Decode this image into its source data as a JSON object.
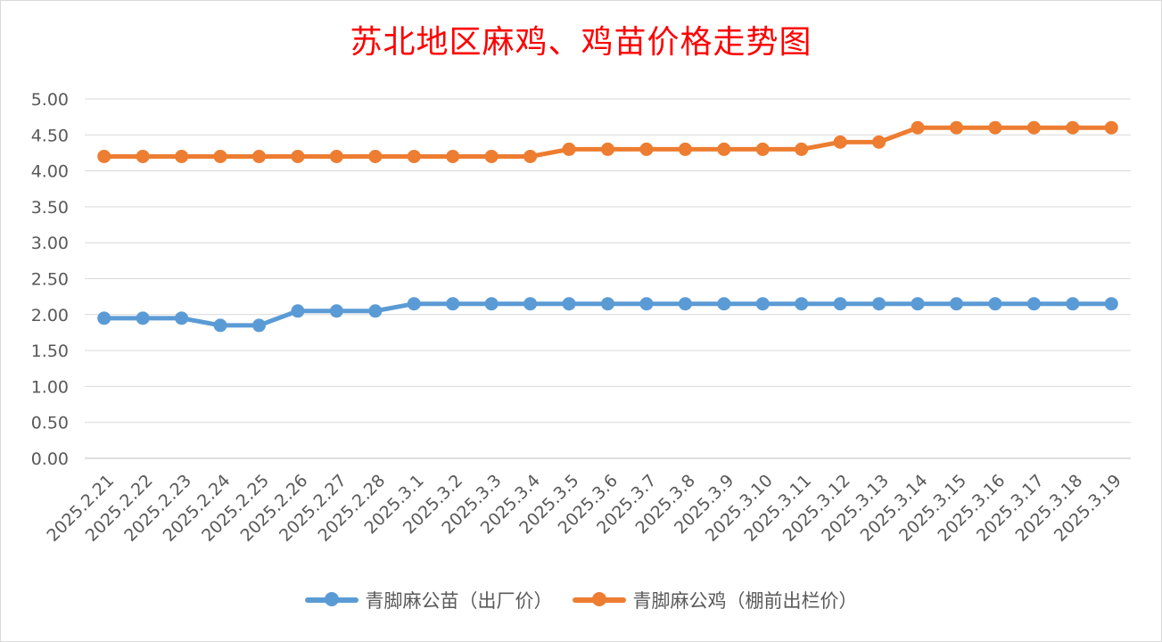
{
  "chart_data": {
    "type": "line",
    "title": "苏北地区麻鸡、鸡苗价格走势图",
    "xlabel": "",
    "ylabel": "",
    "ylim": [
      0,
      5
    ],
    "yticks": [
      "0.00",
      "0.50",
      "1.00",
      "1.50",
      "2.00",
      "2.50",
      "3.00",
      "3.50",
      "4.00",
      "4.50",
      "5.00"
    ],
    "grid": true,
    "legend_position": "bottom",
    "categories": [
      "2025.2.21",
      "2025.2.22",
      "2025.2.23",
      "2025.2.24",
      "2025.2.25",
      "2025.2.26",
      "2025.2.27",
      "2025.2.28",
      "2025.3.1",
      "2025.3.2",
      "2025.3.3",
      "2025.3.4",
      "2025.3.5",
      "2025.3.6",
      "2025.3.7",
      "2025.3.8",
      "2025.3.9",
      "2025.3.10",
      "2025.3.11",
      "2025.3.12",
      "2025.3.13",
      "2025.3.14",
      "2025.3.15",
      "2025.3.16",
      "2025.3.17",
      "2025.3.18",
      "2025.3.19"
    ],
    "series": [
      {
        "name": "青脚麻公苗（出厂价）",
        "color": "#5b9bd5",
        "values": [
          1.95,
          1.95,
          1.95,
          1.85,
          1.85,
          2.05,
          2.05,
          2.05,
          2.15,
          2.15,
          2.15,
          2.15,
          2.15,
          2.15,
          2.15,
          2.15,
          2.15,
          2.15,
          2.15,
          2.15,
          2.15,
          2.15,
          2.15,
          2.15,
          2.15,
          2.15,
          2.15
        ]
      },
      {
        "name": "青脚麻公鸡（棚前出栏价）",
        "color": "#ed7d31",
        "values": [
          4.2,
          4.2,
          4.2,
          4.2,
          4.2,
          4.2,
          4.2,
          4.2,
          4.2,
          4.2,
          4.2,
          4.2,
          4.3,
          4.3,
          4.3,
          4.3,
          4.3,
          4.3,
          4.3,
          4.4,
          4.4,
          4.6,
          4.6,
          4.6,
          4.6,
          4.6,
          4.6
        ]
      }
    ]
  }
}
